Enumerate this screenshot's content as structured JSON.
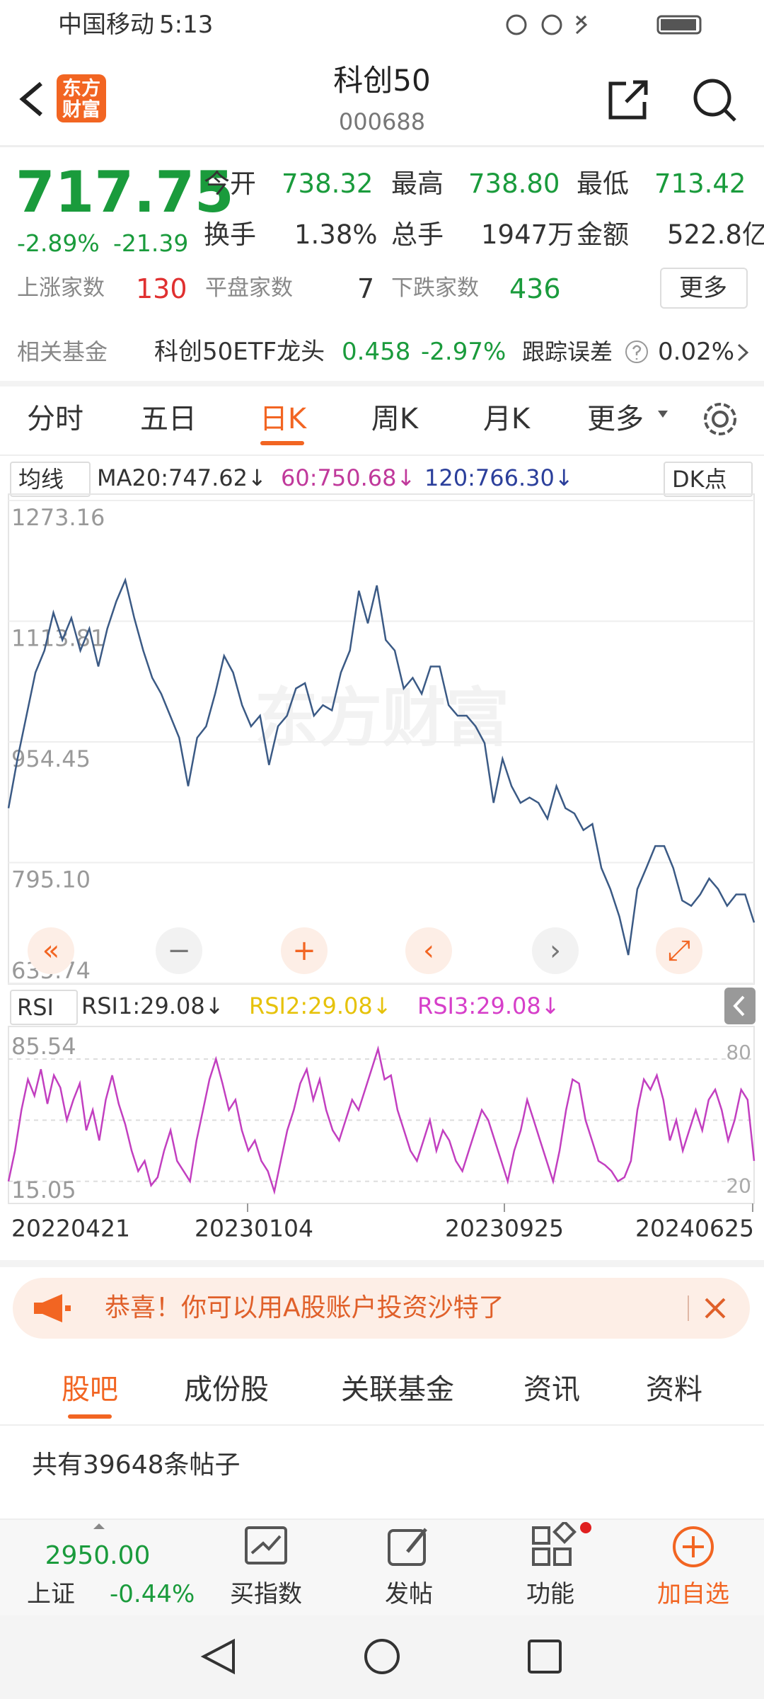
{
  "status_bar": {
    "carrier": "中国移动",
    "time": "5:13"
  },
  "header": {
    "logo": "东方财富",
    "title": "科创50",
    "code": "000688"
  },
  "quote": {
    "price": "717.75",
    "change_pct": "-2.89%",
    "change": "-21.39",
    "fields": [
      {
        "label": "今开",
        "value": "738.32"
      },
      {
        "label": "最高",
        "value": "738.80"
      },
      {
        "label": "最低",
        "value": "713.42"
      },
      {
        "label": "换手",
        "value": "1.38%"
      },
      {
        "label": "总手",
        "value": "1947万"
      },
      {
        "label": "金额",
        "value": "522.8亿"
      }
    ]
  },
  "breadth": {
    "up_label": "上涨家数",
    "up": "130",
    "flat_label": "平盘家数",
    "flat": "7",
    "down_label": "下跌家数",
    "down": "436",
    "more": "更多"
  },
  "fund": {
    "label": "相关基金",
    "name": "科创50ETF龙头",
    "price": "0.458",
    "pct": "-2.97%",
    "tracking_label": "跟踪误差",
    "tracking": "0.02%"
  },
  "period_tabs": [
    "分时",
    "五日",
    "日K",
    "周K",
    "月K",
    "更多"
  ],
  "ma_legend": {
    "label": "均线",
    "ma20": "MA20:747.62↓",
    "ma60": "60:750.68↓",
    "ma120": "120:766.30↓",
    "dk": "DK点"
  },
  "chart_data": [
    {
      "type": "line",
      "watermark": "东方财富",
      "color": "#3b5a85",
      "ylim": [
        635.74,
        1273.16
      ],
      "yticks": [
        1273.16,
        1113.81,
        954.45,
        {
          "value": 795.1,
          "label": "795.10"
        },
        635.74
      ],
      "grid": true,
      "values": [
        867,
        932,
        989,
        1046,
        1075,
        1125,
        1089,
        1118,
        1075,
        1104,
        1054,
        1104,
        1140,
        1168,
        1118,
        1075,
        1039,
        1018,
        989,
        960,
        896,
        960,
        975,
        1018,
        1068,
        1046,
        1003,
        975,
        989,
        924,
        975,
        989,
        1025,
        1032,
        989,
        1003,
        996,
        1046,
        1075,
        1154,
        1111,
        1161,
        1089,
        1075,
        1025,
        1039,
        1018,
        1054,
        1054,
        1003,
        989,
        989,
        975,
        953,
        874,
        932,
        896,
        874,
        881,
        874,
        853,
        896,
        867,
        860,
        838,
        846,
        788,
        760,
        724,
        673,
        760,
        788,
        817,
        817,
        788,
        745,
        738,
        753,
        774,
        760,
        738,
        753,
        753,
        716
      ],
      "x_labels": [
        "20220421",
        "20230104",
        "20230925",
        "20240625"
      ]
    },
    {
      "type": "line",
      "label": "RSI",
      "rsi1": "RSI1:29.08↓",
      "rsi2": "RSI2:29.08↓",
      "rsi3": "RSI3:29.08↓",
      "color": "#c23fc0",
      "ylim": [
        15.05,
        85.54
      ],
      "yticks": [
        20,
        80
      ],
      "values": [
        20,
        35,
        55,
        70,
        62,
        75,
        58,
        72,
        66,
        50,
        60,
        68,
        45,
        55,
        40,
        60,
        72,
        58,
        48,
        35,
        25,
        30,
        18,
        22,
        35,
        45,
        30,
        25,
        20,
        40,
        55,
        70,
        80,
        68,
        55,
        60,
        45,
        35,
        40,
        30,
        25,
        15,
        30,
        45,
        55,
        68,
        75,
        60,
        70,
        55,
        45,
        40,
        50,
        60,
        55,
        65,
        75,
        85,
        70,
        72,
        55,
        45,
        35,
        30,
        40,
        50,
        35,
        45,
        40,
        30,
        25,
        35,
        45,
        55,
        50,
        40,
        30,
        20,
        35,
        45,
        60,
        50,
        40,
        30,
        20,
        35,
        55,
        70,
        68,
        50,
        40,
        30,
        28,
        25,
        20,
        22,
        30,
        55,
        70,
        65,
        72,
        60,
        40,
        50,
        35,
        45,
        55,
        45,
        60,
        65,
        55,
        40,
        50,
        65,
        60,
        30
      ]
    }
  ],
  "banner": {
    "text": "恭喜！你可以用A股账户投资沙特了"
  },
  "content_tabs": [
    "股吧",
    "成份股",
    "关联基金",
    "资讯",
    "资料"
  ],
  "posts": "共有39648条帖子",
  "bottom_bar": {
    "index_value": "2950.00",
    "index_name": "上证",
    "index_pct": "-0.44%",
    "actions": [
      "买指数",
      "发帖",
      "功能",
      "加自选"
    ]
  }
}
